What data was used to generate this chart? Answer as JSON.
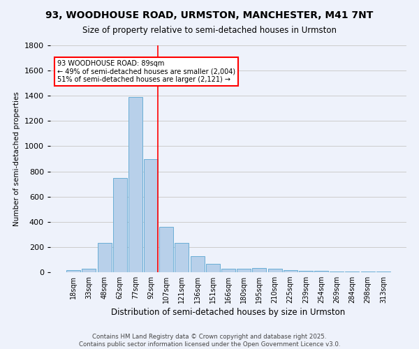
{
  "title1": "93, WOODHOUSE ROAD, URMSTON, MANCHESTER, M41 7NT",
  "title2": "Size of property relative to semi-detached houses in Urmston",
  "xlabel": "Distribution of semi-detached houses by size in Urmston",
  "ylabel": "Number of semi-detached properties",
  "footer1": "Contains HM Land Registry data © Crown copyright and database right 2025.",
  "footer2": "Contains public sector information licensed under the Open Government Licence v3.0.",
  "bar_labels": [
    "18sqm",
    "33sqm",
    "48sqm",
    "62sqm",
    "77sqm",
    "92sqm",
    "107sqm",
    "121sqm",
    "136sqm",
    "151sqm",
    "166sqm",
    "180sqm",
    "195sqm",
    "210sqm",
    "225sqm",
    "239sqm",
    "254sqm",
    "269sqm",
    "284sqm",
    "298sqm",
    "313sqm"
  ],
  "bar_values": [
    15,
    25,
    230,
    750,
    1390,
    900,
    360,
    230,
    125,
    65,
    30,
    25,
    35,
    25,
    15,
    10,
    10,
    5,
    5,
    5,
    5
  ],
  "bar_color": "#b8d0ea",
  "bar_edge_color": "#6aaed6",
  "property_line_x": 5.43,
  "annotation_title": "93 WOODHOUSE ROAD: 89sqm",
  "annotation_line1": "← 49% of semi-detached houses are smaller (2,004)",
  "annotation_line2": "51% of semi-detached houses are larger (2,121) →",
  "annotation_color": "red",
  "ylim": [
    0,
    1800
  ],
  "yticks": [
    0,
    200,
    400,
    600,
    800,
    1000,
    1200,
    1400,
    1600,
    1800
  ],
  "grid_color": "#cccccc",
  "background_color": "#eef2fb"
}
